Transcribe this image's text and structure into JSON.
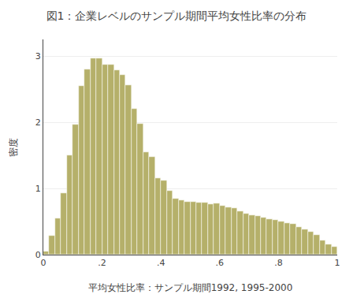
{
  "chart_data": {
    "type": "histogram",
    "title": "図1：企業レベルのサンプル期間平均女性比率の分布",
    "xlabel": "平均女性比率：サンプル期間1992, 1995-2000",
    "ylabel": "密度",
    "color": "#b5b06a",
    "bins": [
      0,
      0.02,
      0.04,
      0.06,
      0.08,
      0.1,
      0.12,
      0.14,
      0.16,
      0.18,
      0.2,
      0.22,
      0.24,
      0.26,
      0.28,
      0.3,
      0.32,
      0.34,
      0.36,
      0.38,
      0.4,
      0.42,
      0.44,
      0.46,
      0.48,
      0.5,
      0.52,
      0.54,
      0.56,
      0.58,
      0.6,
      0.62,
      0.64,
      0.66,
      0.68,
      0.7,
      0.72,
      0.74,
      0.76,
      0.78,
      0.8,
      0.82,
      0.84,
      0.86,
      0.88,
      0.9,
      0.92,
      0.94,
      0.96,
      0.98,
      1
    ],
    "values": [
      0.05,
      0.28,
      0.55,
      0.93,
      1.5,
      1.97,
      2.55,
      2.8,
      2.97,
      2.97,
      2.87,
      2.87,
      2.78,
      2.72,
      2.56,
      2.2,
      1.98,
      1.55,
      1.48,
      1.16,
      1.12,
      0.97,
      0.85,
      0.82,
      0.8,
      0.8,
      0.78,
      0.78,
      0.76,
      0.77,
      0.74,
      0.72,
      0.7,
      0.65,
      0.62,
      0.6,
      0.58,
      0.56,
      0.54,
      0.52,
      0.5,
      0.48,
      0.46,
      0.42,
      0.38,
      0.35,
      0.3,
      0.22,
      0.15,
      0.12
    ],
    "xlim": [
      0,
      1
    ],
    "ylim": [
      0,
      3.25
    ],
    "xticks": [
      0,
      {
        "value": 0.2,
        "label": ".2"
      },
      {
        "value": 0.4,
        "label": ".4"
      },
      {
        "value": 0.6,
        "label": ".6"
      },
      {
        "value": 0.8,
        "label": ".8"
      },
      1
    ],
    "yticks": [
      0,
      1,
      2,
      3
    ],
    "grid": true
  }
}
